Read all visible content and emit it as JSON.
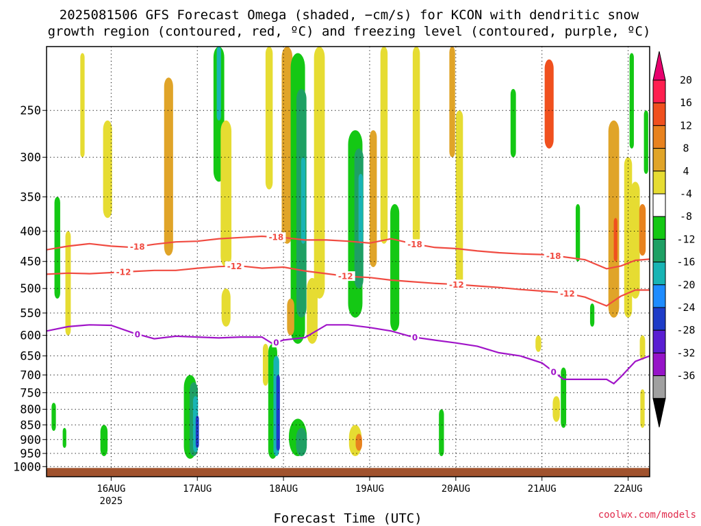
{
  "chart_data": {
    "type": "heatmap",
    "title_lines": [
      "2025081506 GFS Forecast Omega (shaded, −cm/s) for KCON with dendritic snow",
      "growth region (contoured, red, ºC) and freezing level (contoured, purple, ºC)"
    ],
    "xlabel": "Forecast Time (UTC)",
    "credit": "coolwx.com/models",
    "y_axis": {
      "scale": "log-pressure",
      "range_hPa": [
        1040,
        195
      ],
      "ticks": [
        {
          "value": 250,
          "label": "250"
        },
        {
          "value": 300,
          "label": "300"
        },
        {
          "value": 350,
          "label": "350"
        },
        {
          "value": 400,
          "label": "400"
        },
        {
          "value": 450,
          "label": "450"
        },
        {
          "value": 500,
          "label": "500"
        },
        {
          "value": 550,
          "label": "550"
        },
        {
          "value": 600,
          "label": "600"
        },
        {
          "value": 650,
          "label": "650"
        },
        {
          "value": 700,
          "label": "700"
        },
        {
          "value": 750,
          "label": "750"
        },
        {
          "value": 800,
          "label": "800"
        },
        {
          "value": 850,
          "label": "850"
        },
        {
          "value": 900,
          "label": "900"
        },
        {
          "value": 950,
          "label": "950"
        },
        {
          "value": 1000,
          "label": "1000"
        }
      ]
    },
    "x_axis": {
      "unit": "hours since 2025-08-15 06 UTC",
      "range": [
        0,
        168
      ],
      "ticks": [
        {
          "value": 18,
          "label": "16AUG",
          "sublabel": "2025"
        },
        {
          "value": 42,
          "label": "17AUG",
          "sublabel": ""
        },
        {
          "value": 66,
          "label": "18AUG",
          "sublabel": ""
        },
        {
          "value": 90,
          "label": "19AUG",
          "sublabel": ""
        },
        {
          "value": 114,
          "label": "20AUG",
          "sublabel": ""
        },
        {
          "value": 138,
          "label": "21AUG",
          "sublabel": ""
        },
        {
          "value": 162,
          "label": "22AUG",
          "sublabel": ""
        }
      ]
    },
    "grid": true,
    "colorbar": {
      "levels": [
        "20",
        "16",
        "12",
        "8",
        "4",
        "-4",
        "-8",
        "-12",
        "-16",
        "-20",
        "-24",
        "-28",
        "-32",
        "-36"
      ],
      "colors": [
        "#ff1f4f",
        "#f0501e",
        "#e8821e",
        "#e0a428",
        "#e6dc32",
        "#ffffff",
        "#14c814",
        "#1ea064",
        "#18b4b4",
        "#1e8cff",
        "#1e3cc8",
        "#5a1ed2",
        "#9614c8",
        "#a0a0a0"
      ],
      "top_color": "#e8006e",
      "bottom_color": "#000000"
    },
    "terrain_color": "#a0522d",
    "contours": [
      {
        "name": "-18",
        "color": "#f04b41",
        "labels": [
          "-18",
          "-18",
          "-18",
          "-18"
        ],
        "points": [
          [
            0,
            430
          ],
          [
            6,
            424
          ],
          [
            12,
            420
          ],
          [
            18,
            424
          ],
          [
            24,
            426
          ],
          [
            30,
            421
          ],
          [
            36,
            417
          ],
          [
            42,
            416
          ],
          [
            48,
            412
          ],
          [
            54,
            410
          ],
          [
            60,
            408
          ],
          [
            66,
            410
          ],
          [
            72,
            414
          ],
          [
            78,
            414
          ],
          [
            84,
            416
          ],
          [
            90,
            419
          ],
          [
            96,
            412
          ],
          [
            102,
            420
          ],
          [
            108,
            426
          ],
          [
            114,
            428
          ],
          [
            120,
            432
          ],
          [
            126,
            435
          ],
          [
            132,
            437
          ],
          [
            138,
            438
          ],
          [
            144,
            442
          ],
          [
            150,
            447
          ],
          [
            156,
            463
          ],
          [
            160,
            458
          ],
          [
            164,
            448
          ],
          [
            168,
            446
          ]
        ]
      },
      {
        "name": "-12",
        "color": "#f04b41",
        "labels": [
          "-12",
          "-12",
          "-12",
          "-12",
          "-12"
        ],
        "points": [
          [
            0,
            473
          ],
          [
            6,
            471
          ],
          [
            12,
            472
          ],
          [
            18,
            470
          ],
          [
            24,
            468
          ],
          [
            30,
            466
          ],
          [
            36,
            466
          ],
          [
            42,
            462
          ],
          [
            48,
            459
          ],
          [
            54,
            458
          ],
          [
            60,
            462
          ],
          [
            66,
            460
          ],
          [
            72,
            467
          ],
          [
            78,
            472
          ],
          [
            84,
            477
          ],
          [
            90,
            479
          ],
          [
            96,
            484
          ],
          [
            102,
            487
          ],
          [
            108,
            490
          ],
          [
            114,
            492
          ],
          [
            120,
            495
          ],
          [
            126,
            498
          ],
          [
            132,
            502
          ],
          [
            138,
            505
          ],
          [
            144,
            508
          ],
          [
            150,
            517
          ],
          [
            156,
            535
          ],
          [
            160,
            515
          ],
          [
            164,
            503
          ],
          [
            168,
            503
          ]
        ]
      },
      {
        "name": "0",
        "color": "#a014c8",
        "labels": [
          "0",
          "0",
          "0",
          "0"
        ],
        "points": [
          [
            0,
            590
          ],
          [
            6,
            580
          ],
          [
            12,
            576
          ],
          [
            18,
            577
          ],
          [
            24,
            594
          ],
          [
            30,
            608
          ],
          [
            36,
            602
          ],
          [
            42,
            604
          ],
          [
            48,
            606
          ],
          [
            54,
            604
          ],
          [
            60,
            604
          ],
          [
            63,
            620
          ],
          [
            66,
            611
          ],
          [
            72,
            605
          ],
          [
            78,
            576
          ],
          [
            84,
            576
          ],
          [
            90,
            582
          ],
          [
            96,
            590
          ],
          [
            102,
            604
          ],
          [
            108,
            611
          ],
          [
            114,
            618
          ],
          [
            120,
            626
          ],
          [
            126,
            642
          ],
          [
            132,
            650
          ],
          [
            138,
            668
          ],
          [
            144,
            712
          ],
          [
            150,
            712
          ],
          [
            156,
            712
          ],
          [
            158,
            724
          ],
          [
            160,
            705
          ],
          [
            164,
            664
          ],
          [
            168,
            650
          ]
        ]
      }
    ],
    "omega_features": [
      {
        "x": 3,
        "p": [
          350,
          520
        ],
        "w": 1.6,
        "v": -8
      },
      {
        "x": 6,
        "p": [
          400,
          600
        ],
        "w": 1.5,
        "v": 4
      },
      {
        "x": 10,
        "p": [
          200,
          300
        ],
        "w": 1.2,
        "v": 4
      },
      {
        "x": 2,
        "p": [
          780,
          870
        ],
        "w": 1.2,
        "v": -8
      },
      {
        "x": 5,
        "p": [
          860,
          930
        ],
        "w": 1.0,
        "v": -8
      },
      {
        "x": 16,
        "p": [
          850,
          960
        ],
        "w": 2.0,
        "v": -8
      },
      {
        "x": 17,
        "p": [
          260,
          380
        ],
        "w": 2.5,
        "v": 4
      },
      {
        "x": 34,
        "p": [
          220,
          440
        ],
        "w": 2.5,
        "v": 8
      },
      {
        "x": 40,
        "p": [
          700,
          970
        ],
        "w": 3.5,
        "v": -8
      },
      {
        "x": 41,
        "p": [
          720,
          960
        ],
        "w": 2.3,
        "v": -12
      },
      {
        "x": 41.5,
        "p": [
          760,
          945
        ],
        "w": 1.4,
        "v": -16
      },
      {
        "x": 42,
        "p": [
          820,
          930
        ],
        "w": 0.9,
        "v": -24
      },
      {
        "x": 48,
        "p": [
          195,
          330
        ],
        "w": 3.0,
        "v": -8
      },
      {
        "x": 48,
        "p": [
          195,
          260
        ],
        "w": 1.2,
        "v": -16
      },
      {
        "x": 50,
        "p": [
          260,
          460
        ],
        "w": 3.0,
        "v": 4
      },
      {
        "x": 50,
        "p": [
          500,
          580
        ],
        "w": 2.5,
        "v": 4
      },
      {
        "x": 62,
        "p": [
          195,
          340
        ],
        "w": 2.0,
        "v": 4
      },
      {
        "x": 61,
        "p": [
          620,
          730
        ],
        "w": 1.5,
        "v": 4
      },
      {
        "x": 63,
        "p": [
          620,
          970
        ],
        "w": 2.5,
        "v": -8
      },
      {
        "x": 64,
        "p": [
          650,
          960
        ],
        "w": 1.6,
        "v": -16
      },
      {
        "x": 64.5,
        "p": [
          700,
          940
        ],
        "w": 1.0,
        "v": -24
      },
      {
        "x": 67,
        "p": [
          195,
          420
        ],
        "w": 3.0,
        "v": 8
      },
      {
        "x": 70,
        "p": [
          200,
          620
        ],
        "w": 4.0,
        "v": -8
      },
      {
        "x": 71,
        "p": [
          230,
          560
        ],
        "w": 2.8,
        "v": -12
      },
      {
        "x": 71.5,
        "p": [
          300,
          420
        ],
        "w": 1.2,
        "v": -16
      },
      {
        "x": 68,
        "p": [
          520,
          600
        ],
        "w": 2.0,
        "v": 8
      },
      {
        "x": 74,
        "p": [
          480,
          620
        ],
        "w": 3.0,
        "v": 4
      },
      {
        "x": 70,
        "p": [
          830,
          960
        ],
        "w": 5.0,
        "v": -8
      },
      {
        "x": 71,
        "p": [
          860,
          960
        ],
        "w": 3.0,
        "v": -12
      },
      {
        "x": 76,
        "p": [
          195,
          520
        ],
        "w": 3.0,
        "v": 4
      },
      {
        "x": 86,
        "p": [
          270,
          560
        ],
        "w": 4.0,
        "v": -8
      },
      {
        "x": 87,
        "p": [
          290,
          500
        ],
        "w": 2.5,
        "v": -12
      },
      {
        "x": 87.5,
        "p": [
          320,
          420
        ],
        "w": 1.2,
        "v": -16
      },
      {
        "x": 91,
        "p": [
          270,
          460
        ],
        "w": 2.0,
        "v": 8
      },
      {
        "x": 86,
        "p": [
          850,
          960
        ],
        "w": 3.5,
        "v": 4
      },
      {
        "x": 87,
        "p": [
          880,
          940
        ],
        "w": 1.8,
        "v": 12
      },
      {
        "x": 97,
        "p": [
          360,
          590
        ],
        "w": 2.5,
        "v": -8
      },
      {
        "x": 94,
        "p": [
          195,
          420
        ],
        "w": 2.0,
        "v": 4
      },
      {
        "x": 103,
        "p": [
          195,
          420
        ],
        "w": 2.0,
        "v": 4
      },
      {
        "x": 110,
        "p": [
          800,
          960
        ],
        "w": 1.4,
        "v": -8
      },
      {
        "x": 113,
        "p": [
          195,
          300
        ],
        "w": 1.6,
        "v": 8
      },
      {
        "x": 115,
        "p": [
          250,
          500
        ],
        "w": 2.0,
        "v": 4
      },
      {
        "x": 130,
        "p": [
          230,
          300
        ],
        "w": 1.5,
        "v": -8
      },
      {
        "x": 137,
        "p": [
          600,
          640
        ],
        "w": 1.6,
        "v": 4
      },
      {
        "x": 140,
        "p": [
          205,
          290
        ],
        "w": 2.5,
        "v": 16
      },
      {
        "x": 144,
        "p": [
          680,
          860
        ],
        "w": 1.5,
        "v": -8
      },
      {
        "x": 142,
        "p": [
          760,
          840
        ],
        "w": 2.0,
        "v": 4
      },
      {
        "x": 148,
        "p": [
          360,
          450
        ],
        "w": 1.2,
        "v": -8
      },
      {
        "x": 152,
        "p": [
          530,
          580
        ],
        "w": 1.2,
        "v": -8
      },
      {
        "x": 158,
        "p": [
          260,
          560
        ],
        "w": 3.0,
        "v": 8
      },
      {
        "x": 158.5,
        "p": [
          380,
          450
        ],
        "w": 1.0,
        "v": 16
      },
      {
        "x": 162,
        "p": [
          300,
          560
        ],
        "w": 2.2,
        "v": 4
      },
      {
        "x": 164,
        "p": [
          330,
          520
        ],
        "w": 2.5,
        "v": 4
      },
      {
        "x": 166,
        "p": [
          360,
          440
        ],
        "w": 1.8,
        "v": 12
      },
      {
        "x": 166,
        "p": [
          600,
          660
        ],
        "w": 1.5,
        "v": 4
      },
      {
        "x": 167,
        "p": [
          250,
          320
        ],
        "w": 1.2,
        "v": -8
      },
      {
        "x": 163,
        "p": [
          200,
          290
        ],
        "w": 1.2,
        "v": -8
      },
      {
        "x": 166,
        "p": [
          740,
          860
        ],
        "w": 1.2,
        "v": 4
      }
    ]
  }
}
